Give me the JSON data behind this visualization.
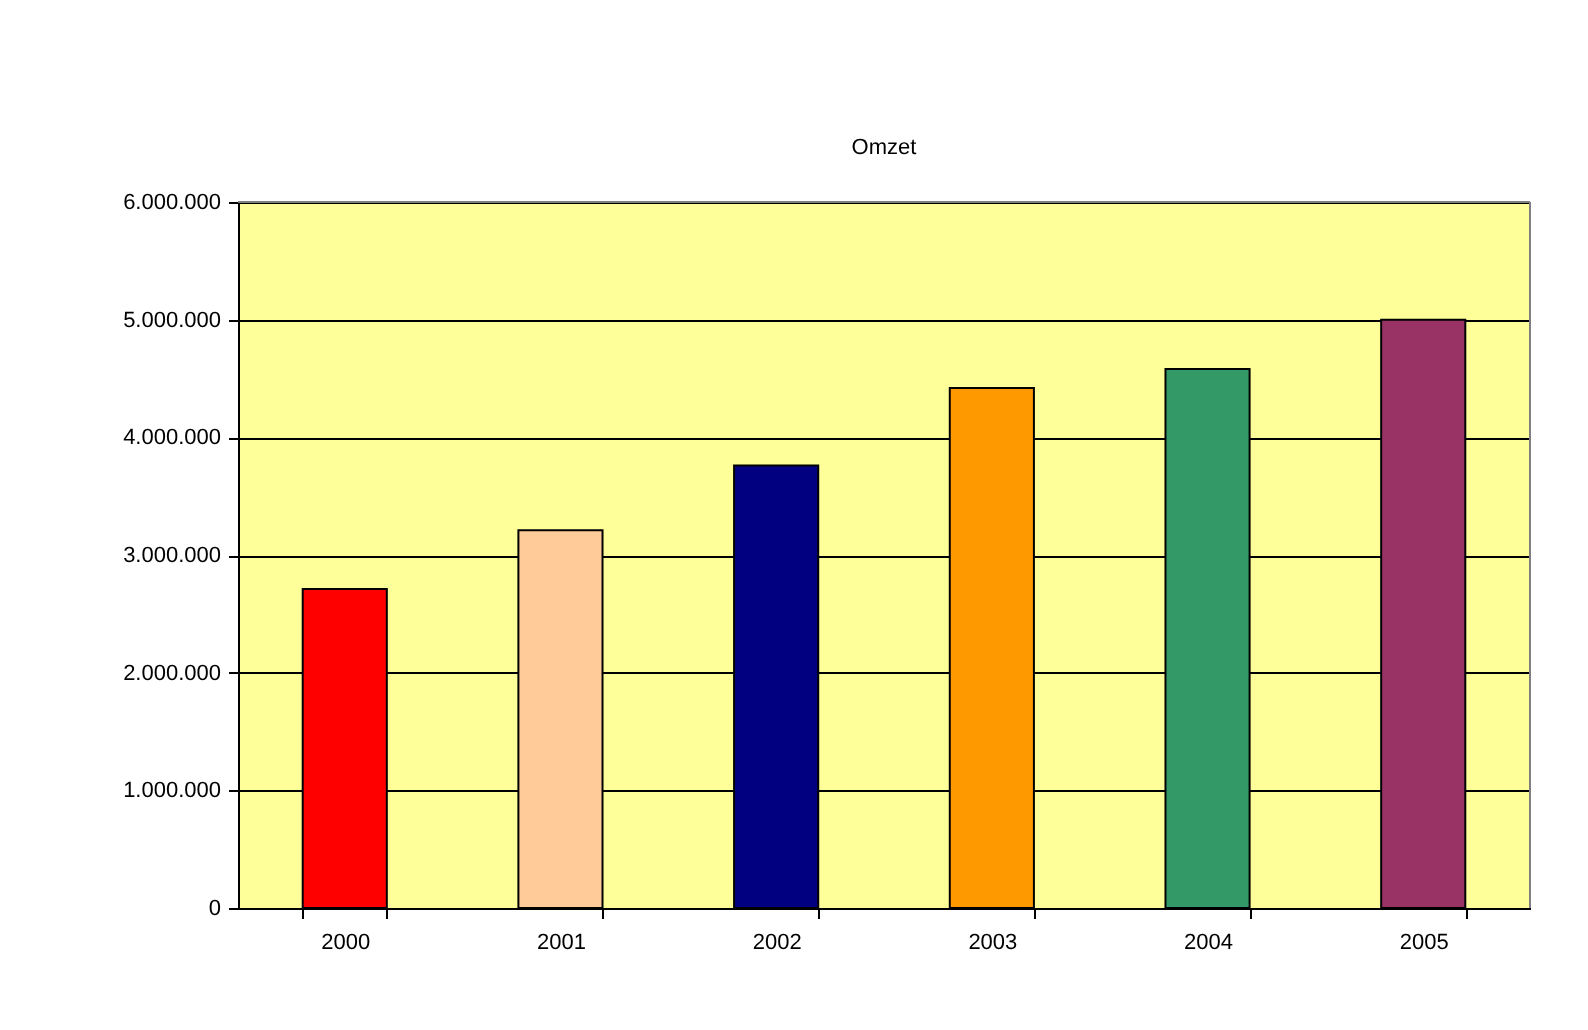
{
  "chart_data": {
    "type": "bar",
    "title": "Omzet",
    "categories": [
      "2000",
      "2001",
      "2002",
      "2003",
      "2004",
      "2005"
    ],
    "values": [
      2710000,
      3210000,
      3760000,
      4420000,
      4580000,
      5000000
    ],
    "colors": [
      "#ff0000",
      "#ffcc99",
      "#000080",
      "#ff9900",
      "#339966",
      "#993366"
    ],
    "ylim": [
      0,
      6000000
    ],
    "yticks": [
      {
        "value": 0,
        "label": "0"
      },
      {
        "value": 1000000,
        "label": "1.000.000"
      },
      {
        "value": 2000000,
        "label": "2.000.000"
      },
      {
        "value": 3000000,
        "label": "3.000.000"
      },
      {
        "value": 4000000,
        "label": "4.000.000"
      },
      {
        "value": 5000000,
        "label": "5.000.000"
      },
      {
        "value": 6000000,
        "label": "6.000.000"
      }
    ],
    "grid": "y",
    "legend": false
  }
}
